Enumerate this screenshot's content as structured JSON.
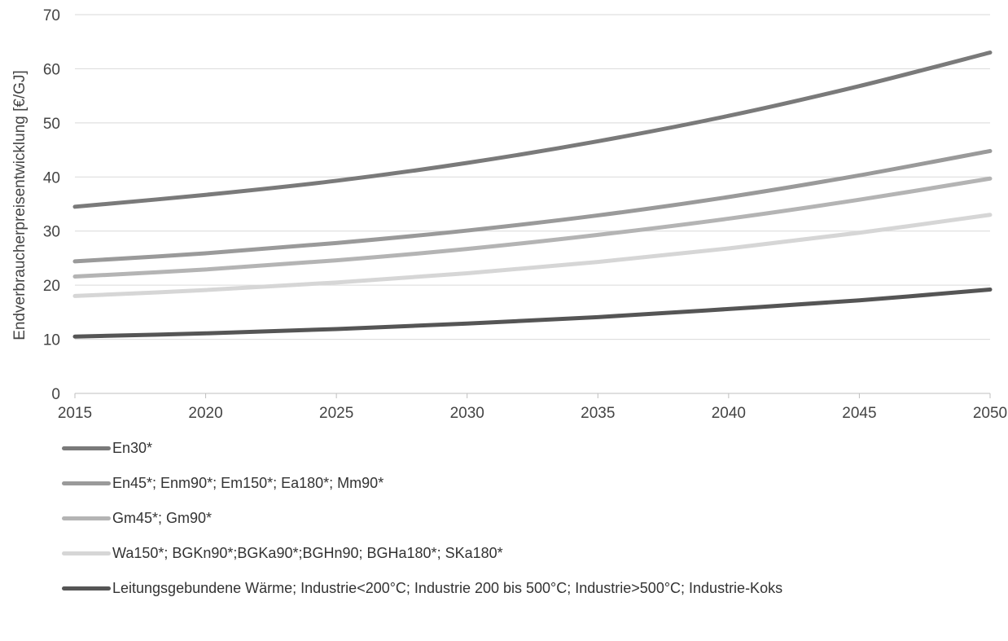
{
  "chart_data": {
    "type": "line",
    "title": "",
    "xlabel": "",
    "ylabel": "Endverbraucherpreisentwicklung [€/GJ]",
    "xlim": [
      2015,
      2050
    ],
    "ylim": [
      0,
      70
    ],
    "xticks": [
      2015,
      2020,
      2025,
      2030,
      2035,
      2040,
      2045,
      2050
    ],
    "yticks": [
      0,
      10,
      20,
      30,
      40,
      50,
      60,
      70
    ],
    "grid": "horizontal",
    "legend_position": "bottom",
    "x": [
      2015,
      2020,
      2025,
      2030,
      2035,
      2040,
      2045,
      2050
    ],
    "series": [
      {
        "name": "En30*",
        "color": "#7a7a7a",
        "values": [
          34.5,
          36.7,
          39.3,
          42.6,
          46.6,
          51.3,
          56.8,
          63.0
        ]
      },
      {
        "name": "En45*; Enm90*; Em150*; Ea180*; Mm90*",
        "color": "#9a9a9a",
        "values": [
          24.4,
          25.9,
          27.8,
          30.1,
          32.9,
          36.3,
          40.3,
          44.8
        ]
      },
      {
        "name": "Gm45*; Gm90*",
        "color": "#b4b4b4",
        "values": [
          21.6,
          22.9,
          24.6,
          26.7,
          29.3,
          32.3,
          35.8,
          39.7
        ]
      },
      {
        "name": "Wa150*; BGKn90*;BGKa90*;BGHn90; BGHa180*; SKa180*",
        "color": "#d6d6d6",
        "values": [
          18.0,
          19.1,
          20.5,
          22.2,
          24.3,
          26.8,
          29.7,
          33.0
        ]
      },
      {
        "name": "Leitungsgebundene Wärme; Industrie<200°C; Industrie 200 bis 500°C; Industrie>500°C; Industrie-Koks",
        "color": "#555555",
        "values": [
          10.5,
          11.1,
          11.9,
          12.9,
          14.1,
          15.6,
          17.2,
          19.2
        ]
      }
    ]
  }
}
